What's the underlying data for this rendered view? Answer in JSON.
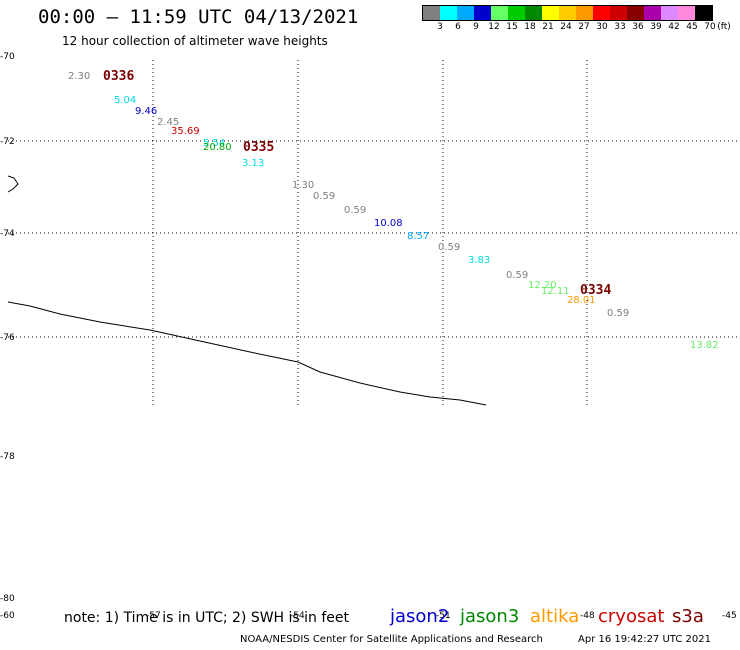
{
  "header": {
    "title": "00:00 – 11:59 UTC 04/13/2021",
    "subtitle": "12 hour collection of altimeter wave heights"
  },
  "colorbar": {
    "unit_label": "(ft)",
    "swatches": [
      "#808080",
      "#00ffff",
      "#00aaff",
      "#0000cc",
      "#66ff66",
      "#00cc00",
      "#008800",
      "#ffff00",
      "#ffcc00",
      "#ff9900",
      "#ff0000",
      "#cc0000",
      "#880000",
      "#aa00aa",
      "#dd88ff",
      "#ff88dd",
      "#000000"
    ],
    "labels": [
      "3",
      "6",
      "9",
      "12",
      "15",
      "18",
      "21",
      "24",
      "27",
      "30",
      "33",
      "36",
      "39",
      "42",
      "45",
      "70"
    ]
  },
  "map": {
    "lat_labels": [
      "-70",
      "-72",
      "-74",
      "-76",
      "-78",
      "-80"
    ],
    "lon_labels": [
      "-60",
      "-57",
      "-54",
      "-51",
      "-48",
      "-45"
    ],
    "pass_labels": [
      "0336",
      "0335",
      "0334"
    ],
    "observations": [
      {
        "text": "2.30",
        "color": "#808080"
      },
      {
        "text": "5.04",
        "color": "#00dddd"
      },
      {
        "text": "9.46",
        "color": "#0000cc"
      },
      {
        "text": "2.45",
        "color": "#808080"
      },
      {
        "text": "35.69",
        "color": "#cc0000"
      },
      {
        "text": "5.54",
        "color": "#00dddd"
      },
      {
        "text": "20.80",
        "color": "#00aa00"
      },
      {
        "text": "3.13",
        "color": "#00dddd"
      },
      {
        "text": "1.30",
        "color": "#808080"
      },
      {
        "text": "0.59",
        "color": "#808080"
      },
      {
        "text": "0.59",
        "color": "#808080"
      },
      {
        "text": "10.08",
        "color": "#0000cc"
      },
      {
        "text": "8.57",
        "color": "#00aaff"
      },
      {
        "text": "0.59",
        "color": "#808080"
      },
      {
        "text": "3.83",
        "color": "#00dddd"
      },
      {
        "text": "0.59",
        "color": "#808080"
      },
      {
        "text": "12.20",
        "color": "#66ee66"
      },
      {
        "text": "12.11",
        "color": "#66ee66"
      },
      {
        "text": "28.01",
        "color": "#ff9900"
      },
      {
        "text": "0.59",
        "color": "#808080"
      },
      {
        "text": "13.82",
        "color": "#66ee66"
      }
    ]
  },
  "footer": {
    "note": "note:  1) Time is in UTC;  2) SWH is in feet",
    "satellites": [
      {
        "name": "jason2",
        "color": "#0000cc"
      },
      {
        "name": "jason3",
        "color": "#008800"
      },
      {
        "name": "altika",
        "color": "#ff9900"
      },
      {
        "name": "cryosat",
        "color": "#cc0000"
      },
      {
        "name": "s3a",
        "color": "#7a0000"
      }
    ],
    "credit": "NOAA/NESDIS Center for Satellite Applications and Research",
    "date_stamp": "Apr 16 19:42:27 UTC 2021"
  }
}
